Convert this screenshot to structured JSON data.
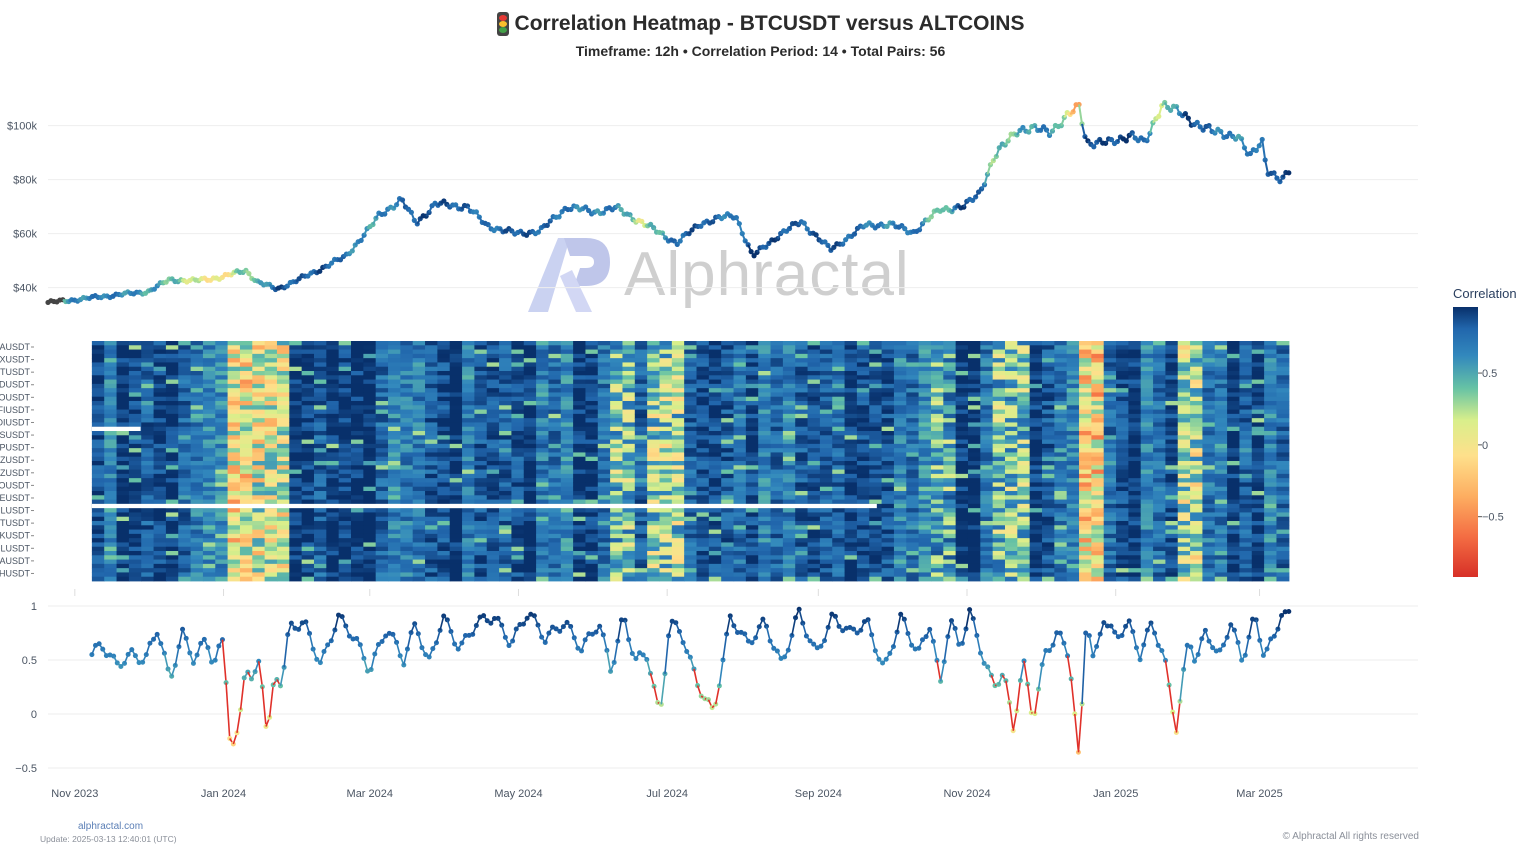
{
  "header": {
    "title": "Correlation Heatmap - BTCUSDT versus ALTCOINS",
    "subtitle": "Timeframe: 12h • Correlation Period: 14  • Total Pairs: 56",
    "icon": "traffic-light-icon"
  },
  "watermark": {
    "text": "Alphractal",
    "logo": "alphractal-logo-icon"
  },
  "colors": {
    "scale": [
      "#d73027",
      "#f46d43",
      "#fdae61",
      "#fee08b",
      "#d9ef8b",
      "#66c2a5",
      "#3288bd",
      "#2166ac",
      "#08306b"
    ],
    "gridline": "#eeeeee",
    "negative_line": "#e0312a"
  },
  "colorbar": {
    "title": "Correlation",
    "ticks": [
      "0.5",
      "0",
      "−0.5"
    ],
    "tick_values": [
      0.5,
      0,
      -0.5
    ],
    "range": [
      -0.92,
      0.96
    ]
  },
  "x_axis": {
    "tick_labels": [
      "Nov 2023",
      "Jan 2024",
      "Mar 2024",
      "May 2024",
      "Jul 2024",
      "Sep 2024",
      "Nov 2024",
      "Jan 2025",
      "Mar 2025"
    ],
    "tick_dates": [
      "2023-11-01",
      "2024-01-01",
      "2024-03-01",
      "2024-05-01",
      "2024-07-01",
      "2024-09-01",
      "2024-11-01",
      "2025-01-01",
      "2025-03-01"
    ],
    "range": [
      "2023-10-21",
      "2025-05-05"
    ]
  },
  "chart_data": [
    {
      "type": "line",
      "panel": "price",
      "y_tick_labels": [
        "$40k",
        "$60k",
        "$80k",
        "$100k"
      ],
      "y_tick_values": [
        40000,
        60000,
        80000,
        100000
      ],
      "ylim": [
        28000,
        111000
      ],
      "x": [
        "2023-10-21",
        "2023-11-01",
        "2023-11-15",
        "2023-12-01",
        "2023-12-10",
        "2023-12-20",
        "2024-01-01",
        "2024-01-10",
        "2024-01-15",
        "2024-01-23",
        "2024-02-01",
        "2024-02-10",
        "2024-02-20",
        "2024-03-01",
        "2024-03-05",
        "2024-03-14",
        "2024-03-20",
        "2024-03-28",
        "2024-04-10",
        "2024-04-18",
        "2024-04-30",
        "2024-05-10",
        "2024-05-21",
        "2024-06-01",
        "2024-06-10",
        "2024-06-20",
        "2024-07-05",
        "2024-07-15",
        "2024-07-29",
        "2024-08-05",
        "2024-08-15",
        "2024-08-25",
        "2024-09-06",
        "2024-09-20",
        "2024-09-30",
        "2024-10-10",
        "2024-10-21",
        "2024-10-31",
        "2024-11-06",
        "2024-11-12",
        "2024-11-22",
        "2024-12-05",
        "2024-12-17",
        "2024-12-20",
        "2024-12-30",
        "2025-01-07",
        "2025-01-13",
        "2025-01-20",
        "2025-01-31",
        "2025-02-10",
        "2025-02-20",
        "2025-02-25",
        "2025-03-02",
        "2025-03-04",
        "2025-03-10",
        "2025-03-13"
      ],
      "values": [
        34500,
        35500,
        37000,
        38500,
        43000,
        42500,
        44000,
        46500,
        42000,
        39500,
        43000,
        47000,
        51500,
        62000,
        67000,
        72500,
        64000,
        71000,
        70000,
        63000,
        60000,
        61000,
        70000,
        68000,
        69500,
        64500,
        56500,
        64000,
        67000,
        51500,
        59000,
        64500,
        54000,
        63000,
        63500,
        60500,
        69000,
        70000,
        75000,
        88000,
        99000,
        98000,
        107000,
        94000,
        93500,
        97000,
        93000,
        108500,
        102500,
        97500,
        96500,
        88000,
        95000,
        84000,
        79000,
        83000
      ],
      "color_by": "correlation",
      "color_values": [
        0.2,
        0.5,
        0.6,
        0.4,
        0.3,
        0.0,
        -0.2,
        0.3,
        0.2,
        0.8,
        0.7,
        0.8,
        0.6,
        0.4,
        0.5,
        0.6,
        0.8,
        0.8,
        0.7,
        0.6,
        0.8,
        0.7,
        0.6,
        0.5,
        0.6,
        0.0,
        0.7,
        0.8,
        0.5,
        0.9,
        0.8,
        0.7,
        0.8,
        0.6,
        0.5,
        0.7,
        0.1,
        0.9,
        0.7,
        0.2,
        0.3,
        0.6,
        -0.5,
        0.9,
        0.8,
        0.9,
        0.6,
        0.0,
        0.9,
        0.6,
        0.5,
        0.5,
        0.7,
        0.6,
        0.9,
        0.9
      ]
    },
    {
      "type": "heatmap",
      "panel": "heatmap",
      "rows_total": 56,
      "visible_row_labels": [
        "NAUSDT",
        "RXUSDT",
        "RTUSDT",
        "NDUSDT",
        "SOUSDT",
        "YFIUSDT",
        "DIUSDT",
        "KSUSDT",
        "CPUSDT",
        "TZUSDT",
        "HZUSDT",
        "EOUSDT",
        "PEUSDT",
        "FILUSDT",
        "ETUSDT",
        "NKUSDT",
        "OLUSDT",
        "DAUSDT",
        "THUSDT"
      ],
      "columns": 97,
      "x_range": [
        "2023-11-08",
        "2025-03-13"
      ],
      "gaps": [
        {
          "row": 20,
          "from": "2023-11-08",
          "to": "2023-11-28"
        },
        {
          "row": 38,
          "from": "2023-11-08",
          "to": "2024-09-25"
        }
      ],
      "low_correlation_periods": [
        {
          "from": "2024-01-05",
          "to": "2024-01-10",
          "level": -0.3
        },
        {
          "from": "2024-01-18",
          "to": "2024-01-24",
          "level": -0.2
        },
        {
          "from": "2024-06-10",
          "to": "2024-06-14",
          "level": 0.1
        },
        {
          "from": "2024-06-28",
          "to": "2024-07-02",
          "level": 0.0
        },
        {
          "from": "2024-10-20",
          "to": "2024-10-23",
          "level": 0.2
        },
        {
          "from": "2024-11-13",
          "to": "2024-11-25",
          "level": 0.1
        },
        {
          "from": "2024-12-19",
          "to": "2024-12-21",
          "level": -0.4
        },
        {
          "from": "2025-01-31",
          "to": "2025-02-03",
          "level": -0.1
        }
      ],
      "typical_level": 0.75,
      "colorscale": "RdYlBu"
    },
    {
      "type": "line",
      "panel": "average_correlation",
      "y_tick_labels": [
        "1",
        "0.5",
        "0",
        "−0.5"
      ],
      "y_tick_values": [
        1,
        0.5,
        0,
        -0.5
      ],
      "ylim": [
        -0.55,
        1.0
      ],
      "x": [
        "2023-11-08",
        "2023-11-12",
        "2023-11-18",
        "2023-11-24",
        "2023-11-30",
        "2023-12-05",
        "2023-12-10",
        "2023-12-15",
        "2023-12-20",
        "2023-12-25",
        "2023-12-28",
        "2024-01-01",
        "2024-01-04",
        "2024-01-07",
        "2024-01-10",
        "2024-01-13",
        "2024-01-16",
        "2024-01-19",
        "2024-01-22",
        "2024-01-25",
        "2024-01-28",
        "2024-02-03",
        "2024-02-10",
        "2024-02-17",
        "2024-02-24",
        "2024-03-01",
        "2024-03-08",
        "2024-03-15",
        "2024-03-20",
        "2024-03-25",
        "2024-03-31",
        "2024-04-07",
        "2024-04-14",
        "2024-04-21",
        "2024-04-28",
        "2024-05-05",
        "2024-05-12",
        "2024-05-20",
        "2024-05-27",
        "2024-06-03",
        "2024-06-08",
        "2024-06-13",
        "2024-06-18",
        "2024-06-23",
        "2024-06-28",
        "2024-07-02",
        "2024-07-07",
        "2024-07-13",
        "2024-07-20",
        "2024-07-27",
        "2024-08-03",
        "2024-08-10",
        "2024-08-17",
        "2024-08-24",
        "2024-08-31",
        "2024-09-07",
        "2024-09-14",
        "2024-09-21",
        "2024-09-28",
        "2024-10-05",
        "2024-10-12",
        "2024-10-17",
        "2024-10-21",
        "2024-10-25",
        "2024-10-29",
        "2024-11-02",
        "2024-11-08",
        "2024-11-12",
        "2024-11-16",
        "2024-11-20",
        "2024-11-24",
        "2024-11-28",
        "2024-12-03",
        "2024-12-08",
        "2024-12-13",
        "2024-12-17",
        "2024-12-20",
        "2024-12-23",
        "2024-12-27",
        "2025-01-01",
        "2025-01-06",
        "2025-01-11",
        "2025-01-16",
        "2025-01-21",
        "2025-01-26",
        "2025-01-31",
        "2025-02-03",
        "2025-02-07",
        "2025-02-12",
        "2025-02-17",
        "2025-02-22",
        "2025-02-27",
        "2025-03-03",
        "2025-03-07",
        "2025-03-10",
        "2025-03-13"
      ],
      "values": [
        0.55,
        0.65,
        0.45,
        0.55,
        0.5,
        0.8,
        0.3,
        0.75,
        0.5,
        0.7,
        0.45,
        0.7,
        -0.35,
        -0.2,
        0.5,
        0.25,
        0.55,
        -0.25,
        0.35,
        0.3,
        0.8,
        0.85,
        0.45,
        0.9,
        0.7,
        0.4,
        0.8,
        0.5,
        0.85,
        0.45,
        0.9,
        0.6,
        0.85,
        0.9,
        0.65,
        0.95,
        0.7,
        0.85,
        0.6,
        0.85,
        0.4,
        0.9,
        0.5,
        0.55,
        -0.05,
        0.85,
        0.75,
        0.3,
        0.0,
        0.9,
        0.65,
        0.85,
        0.45,
        0.95,
        0.55,
        0.9,
        0.75,
        0.85,
        0.4,
        0.9,
        0.55,
        0.85,
        0.25,
        0.9,
        0.6,
        0.95,
        0.5,
        0.25,
        0.4,
        -0.15,
        0.5,
        -0.05,
        0.55,
        0.75,
        0.55,
        -0.48,
        0.95,
        0.45,
        0.9,
        0.7,
        0.85,
        0.55,
        0.85,
        0.5,
        -0.15,
        0.75,
        0.45,
        0.8,
        0.5,
        0.85,
        0.5,
        0.9,
        0.55,
        0.7,
        0.95,
        0.9
      ]
    }
  ],
  "footer": {
    "site": "alphractal.com",
    "update": "Update: 2025-03-13 12:40:01 (UTC)",
    "copyright": "© Alphractal All rights reserved"
  }
}
